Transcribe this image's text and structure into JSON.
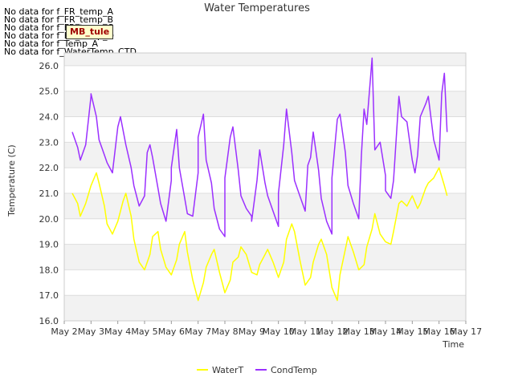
{
  "no_data_messages": [
    "No data for f_FR_temp_A",
    "No data for f_FR_temp_B",
    "No data for f_FR_temp_C",
    "No data for f_FR_temp_D",
    "No data for f_Temp_A",
    "No data for f_WaterTemp_CTD"
  ],
  "badge": "MB_tule",
  "chart_data": {
    "type": "line",
    "title": "Water Temperatures",
    "xlabel": "Time",
    "ylabel": "Temperature (C)",
    "xlim": [
      2,
      17
    ],
    "ylim": [
      16.0,
      26.5
    ],
    "x_ticks": [
      "May 2",
      "May 3",
      "May 4",
      "May 5",
      "May 6",
      "May 7",
      "May 8",
      "May 9",
      "May 10",
      "May 11",
      "May 12",
      "May 13",
      "May 14",
      "May 15",
      "May 16",
      "May 17"
    ],
    "y_ticks": [
      "16.0",
      "17.0",
      "18.0",
      "19.0",
      "20.0",
      "21.0",
      "22.0",
      "23.0",
      "24.0",
      "25.0",
      "26.0"
    ],
    "legend_position": "bottom-center",
    "series": [
      {
        "name": "WaterT",
        "color": "#ffff00",
        "x": [
          2.3,
          2.5,
          2.6,
          2.8,
          3.0,
          3.2,
          3.3,
          3.5,
          3.6,
          3.8,
          4.0,
          4.2,
          4.3,
          4.5,
          4.6,
          4.8,
          5.0,
          5.2,
          5.3,
          5.5,
          5.6,
          5.8,
          6.0,
          6.2,
          6.3,
          6.5,
          6.6,
          6.8,
          7.0,
          7.2,
          7.3,
          7.5,
          7.6,
          7.8,
          8.0,
          8.2,
          8.3,
          8.5,
          8.6,
          8.8,
          9.0,
          9.2,
          9.3,
          9.5,
          9.6,
          9.8,
          10.0,
          10.2,
          10.3,
          10.5,
          10.6,
          10.8,
          11.0,
          11.2,
          11.3,
          11.5,
          11.6,
          11.8,
          12.0,
          12.2,
          12.3,
          12.5,
          12.6,
          12.8,
          13.0,
          13.2,
          13.3,
          13.5,
          13.6,
          13.8,
          14.0,
          14.2,
          14.3,
          14.5,
          14.6,
          14.8,
          15.0,
          15.2,
          15.3,
          15.5,
          15.6,
          15.8,
          16.0,
          16.2,
          16.3
        ],
        "values": [
          21.0,
          20.6,
          20.1,
          20.6,
          21.3,
          21.8,
          21.4,
          20.5,
          19.8,
          19.4,
          19.9,
          20.7,
          21.0,
          20.1,
          19.2,
          18.3,
          18.0,
          18.6,
          19.3,
          19.5,
          18.8,
          18.1,
          17.8,
          18.4,
          19.0,
          19.5,
          18.7,
          17.6,
          16.8,
          17.5,
          18.1,
          18.6,
          18.8,
          17.9,
          17.1,
          17.6,
          18.3,
          18.5,
          18.9,
          18.6,
          17.9,
          17.8,
          18.2,
          18.6,
          18.8,
          18.3,
          17.7,
          18.3,
          19.2,
          19.8,
          19.5,
          18.4,
          17.4,
          17.7,
          18.3,
          19.0,
          19.2,
          18.6,
          17.3,
          16.8,
          17.8,
          18.8,
          19.3,
          18.7,
          18.0,
          18.2,
          18.9,
          19.6,
          20.2,
          19.4,
          19.1,
          19.0,
          19.5,
          20.6,
          20.7,
          20.5,
          20.9,
          20.4,
          20.6,
          21.2,
          21.4,
          21.6,
          22.0,
          21.3,
          20.9
        ],
        "x2": [
          15.3,
          15.5,
          15.6,
          15.8,
          16.0,
          16.2,
          16.3
        ],
        "values2": [
          21.1,
          21.4,
          22.0,
          22.3,
          23.1,
          22.7,
          22.0
        ]
      },
      {
        "name": "CondTemp",
        "color": "#9b30ff",
        "x": [
          2.3,
          2.5,
          2.6,
          2.8,
          3.0,
          3.0,
          3.2,
          3.3,
          3.5,
          3.6,
          3.8,
          4.0,
          4.1,
          4.3,
          4.5,
          4.6,
          4.8,
          5.0,
          5.1,
          5.2,
          5.3,
          5.5,
          5.6,
          5.8,
          6.0,
          6.0,
          6.2,
          6.3,
          6.5,
          6.6,
          6.8,
          7.0,
          7.0,
          7.2,
          7.3,
          7.5,
          7.6,
          7.8,
          8.0,
          8.0,
          8.2,
          8.3,
          8.5,
          8.6,
          8.8,
          9.0,
          9.0,
          9.2,
          9.3,
          9.5,
          9.6,
          9.8,
          10.0,
          10.0,
          10.2,
          10.3,
          10.5,
          10.6,
          10.8,
          11.0,
          11.1,
          11.2,
          11.3,
          11.5,
          11.6,
          11.8,
          12.0,
          12.0,
          12.2,
          12.3,
          12.5,
          12.6,
          12.8,
          13.0,
          13.1,
          13.2,
          13.3,
          13.5,
          13.6,
          13.8,
          14.0,
          14.0,
          14.2,
          14.3,
          14.5,
          14.6,
          14.8,
          15.0,
          15.1,
          15.2,
          15.3,
          15.5,
          15.6,
          15.8,
          16.0,
          16.1,
          16.2,
          16.3
        ],
        "values": [
          23.4,
          22.8,
          22.3,
          22.9,
          24.8,
          24.9,
          24.0,
          23.1,
          22.5,
          22.2,
          21.8,
          23.6,
          24.0,
          22.9,
          22.0,
          21.3,
          20.5,
          20.9,
          22.6,
          22.9,
          22.4,
          21.2,
          20.6,
          19.9,
          21.5,
          22.0,
          23.5,
          22.0,
          20.8,
          20.2,
          20.1,
          21.8,
          23.2,
          24.1,
          22.3,
          21.4,
          20.4,
          19.6,
          19.3,
          21.6,
          23.2,
          23.6,
          21.9,
          20.9,
          20.4,
          20.1,
          19.9,
          21.5,
          22.7,
          21.4,
          20.9,
          20.3,
          19.7,
          21.0,
          22.9,
          24.3,
          22.6,
          21.5,
          20.9,
          20.3,
          22.1,
          22.4,
          23.4,
          21.9,
          20.8,
          19.9,
          19.4,
          21.6,
          23.9,
          24.1,
          22.6,
          21.3,
          20.6,
          20.0,
          22.5,
          24.3,
          23.7,
          26.3,
          22.7,
          23.0,
          21.7,
          21.1,
          20.8,
          21.5,
          24.8,
          24.0,
          23.8,
          22.3,
          21.8,
          22.5,
          24.0,
          24.5,
          24.8,
          23.1,
          22.3,
          24.9,
          25.7,
          23.4
        ],
        "x2": [],
        "values2": []
      }
    ]
  }
}
